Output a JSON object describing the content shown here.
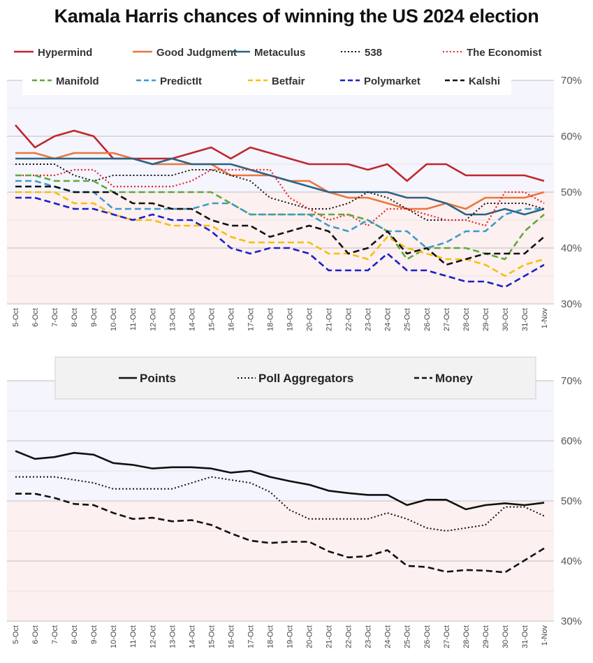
{
  "title": "Kamala Harris chances of winning the US 2024 election",
  "chart_data": [
    {
      "type": "line",
      "x": [
        "5-Oct",
        "6-Oct",
        "7-Oct",
        "8-Oct",
        "9-Oct",
        "10-Oct",
        "11-Oct",
        "12-Oct",
        "13-Oct",
        "14-Oct",
        "15-Oct",
        "16-Oct",
        "17-Oct",
        "18-Oct",
        "19-Oct",
        "20-Oct",
        "21-Oct",
        "22-Oct",
        "23-Oct",
        "24-Oct",
        "25-Oct",
        "26-Oct",
        "27-Oct",
        "28-Oct",
        "29-Oct",
        "30-Oct",
        "31-Oct",
        "1-Nov"
      ],
      "yticks": [
        "70%",
        "60%",
        "50%",
        "40%",
        "30%"
      ],
      "ylim": [
        30,
        70
      ],
      "shading": {
        "above_50": "#f4f5fd",
        "below_50": "#fdf0f0"
      },
      "series": [
        {
          "name": "Hypermind",
          "color": "#c0272d",
          "style": "solid",
          "width": 2.6,
          "values": [
            62,
            58,
            60,
            61,
            60,
            56,
            56,
            56,
            56,
            57,
            58,
            56,
            58,
            57,
            56,
            55,
            55,
            55,
            54,
            55,
            52,
            55,
            55,
            53,
            53,
            53,
            53,
            52
          ]
        },
        {
          "name": "Good Judgment",
          "color": "#e8773f",
          "style": "solid",
          "width": 2.6,
          "values": [
            57,
            57,
            56,
            57,
            57,
            57,
            56,
            55,
            55,
            55,
            55,
            53,
            53,
            53,
            52,
            52,
            50,
            49,
            49,
            48,
            47,
            47,
            48,
            47,
            49,
            49,
            49,
            50
          ]
        },
        {
          "name": "Metaculus",
          "color": "#2c6284",
          "style": "solid",
          "width": 2.6,
          "values": [
            56,
            56,
            56,
            56,
            56,
            56,
            56,
            55,
            56,
            55,
            55,
            55,
            54,
            53,
            52,
            51,
            50,
            50,
            50,
            50,
            49,
            49,
            48,
            46,
            46,
            47,
            46,
            47
          ]
        },
        {
          "name": "538",
          "color": "#111111",
          "style": "dot",
          "width": 2,
          "values": [
            55,
            55,
            55,
            53,
            52,
            53,
            53,
            53,
            53,
            54,
            54,
            53,
            52,
            49,
            48,
            47,
            47,
            48,
            50,
            49,
            47,
            45,
            45,
            45,
            48,
            48,
            48,
            47
          ]
        },
        {
          "name": "The Economist",
          "color": "#e8262a",
          "style": "dot",
          "width": 2.2,
          "values": [
            53,
            53,
            53,
            54,
            54,
            51,
            51,
            51,
            51,
            52,
            54,
            54,
            54,
            54,
            49,
            47,
            45,
            46,
            44,
            47,
            47,
            46,
            45,
            45,
            44,
            50,
            50,
            48
          ]
        },
        {
          "name": "Manifold",
          "color": "#5fa83a",
          "style": "dash",
          "width": 2.6,
          "values": [
            53,
            53,
            52,
            52,
            52,
            50,
            50,
            50,
            50,
            50,
            50,
            48,
            46,
            46,
            46,
            46,
            46,
            46,
            45,
            43,
            38,
            40,
            40,
            40,
            39,
            38,
            43,
            46
          ]
        },
        {
          "name": "PredictIt",
          "color": "#3a9cc9",
          "style": "dash",
          "width": 2.6,
          "values": [
            52,
            52,
            51,
            50,
            50,
            47,
            47,
            47,
            47,
            47,
            48,
            48,
            46,
            46,
            46,
            46,
            44,
            43,
            45,
            43,
            43,
            40,
            41,
            43,
            43,
            46,
            47,
            47
          ]
        },
        {
          "name": "Betfair",
          "color": "#f3c00e",
          "style": "dash",
          "width": 2.6,
          "values": [
            50,
            50,
            50,
            48,
            48,
            46,
            45,
            45,
            44,
            44,
            44,
            42,
            41,
            41,
            41,
            41,
            39,
            39,
            38,
            42,
            40,
            39,
            38,
            38,
            37,
            35,
            37,
            38
          ]
        },
        {
          "name": "Polymarket",
          "color": "#1920c8",
          "style": "dash",
          "width": 2.6,
          "values": [
            49,
            49,
            48,
            47,
            47,
            46,
            45,
            46,
            45,
            45,
            43,
            40,
            39,
            40,
            40,
            39,
            36,
            36,
            36,
            39,
            36,
            36,
            35,
            34,
            34,
            33,
            35,
            37
          ]
        },
        {
          "name": "Kalshi",
          "color": "#111111",
          "style": "dash",
          "width": 2.6,
          "values": [
            51,
            51,
            51,
            50,
            50,
            50,
            48,
            48,
            47,
            47,
            45,
            44,
            44,
            42,
            43,
            44,
            43,
            39,
            40,
            43,
            39,
            40,
            37,
            38,
            39,
            39,
            39,
            42
          ]
        }
      ]
    },
    {
      "type": "line",
      "x": [
        "5-Oct",
        "6-Oct",
        "7-Oct",
        "8-Oct",
        "9-Oct",
        "10-Oct",
        "11-Oct",
        "12-Oct",
        "13-Oct",
        "14-Oct",
        "15-Oct",
        "16-Oct",
        "17-Oct",
        "18-Oct",
        "19-Oct",
        "20-Oct",
        "21-Oct",
        "22-Oct",
        "23-Oct",
        "24-Oct",
        "25-Oct",
        "26-Oct",
        "27-Oct",
        "28-Oct",
        "29-Oct",
        "30-Oct",
        "31-Oct",
        "1-Nov"
      ],
      "yticks": [
        "70%",
        "60%",
        "50%",
        "40%",
        "30%"
      ],
      "ylim": [
        30,
        70
      ],
      "shading": {
        "above_50": "#f4f5fd",
        "below_50": "#fdf0f0"
      },
      "series": [
        {
          "name": "Points",
          "color": "#111111",
          "style": "solid",
          "width": 2.6,
          "values": [
            58.3,
            57,
            57.3,
            58,
            57.7,
            56.3,
            56,
            55.4,
            55.6,
            55.6,
            55.4,
            54.7,
            55,
            54,
            53.3,
            52.7,
            51.7,
            51.3,
            51,
            51,
            49.3,
            50.2,
            50.2,
            48.6,
            49.3,
            49.6,
            49.3,
            49.7
          ]
        },
        {
          "name": "Poll Aggregators",
          "color": "#111111",
          "style": "dot",
          "width": 2,
          "values": [
            54,
            54,
            54,
            53.5,
            53,
            52,
            52,
            52,
            52,
            53,
            54,
            53.5,
            53,
            51.5,
            48.5,
            47,
            47,
            47,
            47,
            48,
            47,
            45.5,
            45,
            45.5,
            46,
            49,
            49,
            47.5
          ]
        },
        {
          "name": "Money",
          "color": "#111111",
          "style": "dash",
          "width": 2.6,
          "values": [
            51.2,
            51.2,
            50.5,
            49.5,
            49.3,
            48,
            47,
            47.2,
            46.6,
            46.8,
            46,
            44.6,
            43.4,
            43,
            43.2,
            43.2,
            41.6,
            40.6,
            40.8,
            41.8,
            39.2,
            39,
            38.2,
            38.5,
            38.4,
            38.1,
            40.1,
            42.1
          ]
        }
      ]
    }
  ]
}
